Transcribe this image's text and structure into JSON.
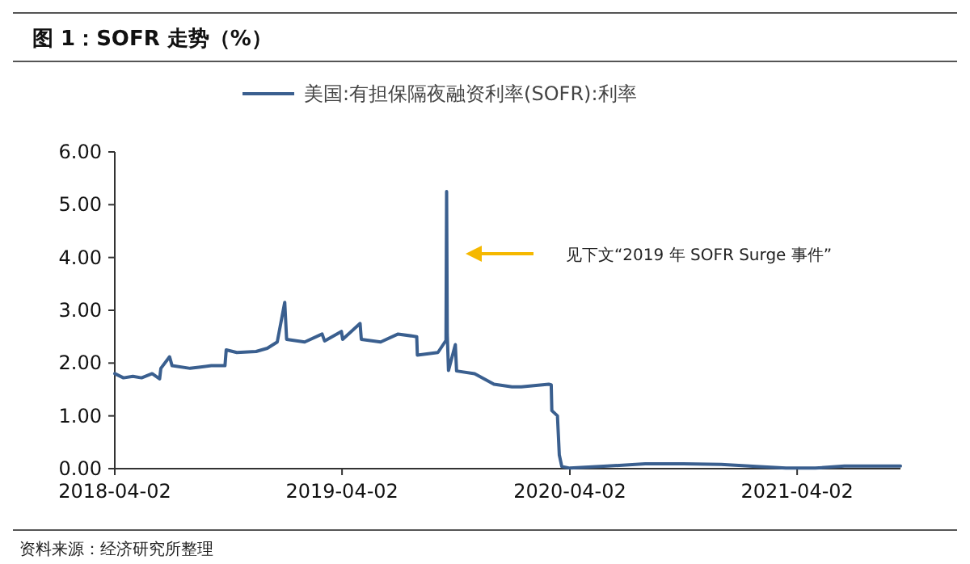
{
  "chart_data": {
    "type": "line",
    "title": "图 1：SOFR 走势（%）",
    "x": [
      "2018-04-02",
      "2018-04-16",
      "2018-05-01",
      "2018-05-15",
      "2018-06-01",
      "2018-06-13",
      "2018-06-15",
      "2018-06-29",
      "2018-07-03",
      "2018-08-01",
      "2018-08-15",
      "2018-09-04",
      "2018-09-26",
      "2018-09-28",
      "2018-10-15",
      "2018-11-15",
      "2018-12-03",
      "2018-12-19",
      "2018-12-31",
      "2019-01-03",
      "2019-02-01",
      "2019-03-01",
      "2019-03-05",
      "2019-04-01",
      "2019-04-03",
      "2019-05-01",
      "2019-05-03",
      "2019-06-03",
      "2019-07-01",
      "2019-07-31",
      "2019-08-01",
      "2019-09-03",
      "2019-09-16",
      "2019-09-17",
      "2019-09-18",
      "2019-09-20",
      "2019-10-01",
      "2019-10-03",
      "2019-11-01",
      "2019-12-02",
      "2019-12-31",
      "2020-01-15",
      "2020-02-28",
      "2020-03-03",
      "2020-03-04",
      "2020-03-13",
      "2020-03-16",
      "2020-03-20",
      "2020-04-02",
      "2020-06-01",
      "2020-08-01",
      "2020-10-01",
      "2020-12-01",
      "2021-02-01",
      "2021-03-15",
      "2021-05-01",
      "2021-06-17",
      "2021-09-15"
    ],
    "series": [
      {
        "name": "美国:有担保隔夜融资利率(SOFR):利率",
        "color": "#3a5f8f",
        "values": [
          1.8,
          1.72,
          1.75,
          1.72,
          1.8,
          1.7,
          1.9,
          2.12,
          1.95,
          1.9,
          1.92,
          1.95,
          1.95,
          2.25,
          2.2,
          2.22,
          2.28,
          2.4,
          3.15,
          2.45,
          2.4,
          2.55,
          2.42,
          2.6,
          2.45,
          2.75,
          2.45,
          2.4,
          2.55,
          2.5,
          2.15,
          2.2,
          2.43,
          5.25,
          2.55,
          1.86,
          2.35,
          1.85,
          1.8,
          1.6,
          1.55,
          1.55,
          1.6,
          1.59,
          1.1,
          1.0,
          0.26,
          0.04,
          0.01,
          0.05,
          0.09,
          0.09,
          0.08,
          0.04,
          0.01,
          0.01,
          0.05,
          0.05
        ]
      }
    ],
    "xlim": [
      "2018-04-02",
      "2021-09-15"
    ],
    "xticks": [
      "2018-04-02",
      "2019-04-02",
      "2020-04-02",
      "2021-04-02"
    ],
    "ylim": [
      0,
      6
    ],
    "yticks": [
      {
        "value": 0,
        "label": "0.00"
      },
      {
        "value": 1,
        "label": "1.00"
      },
      {
        "value": 2,
        "label": "2.00"
      },
      {
        "value": 3,
        "label": "3.00"
      },
      {
        "value": 4,
        "label": "4.00"
      },
      {
        "value": 5,
        "label": "5.00"
      },
      {
        "value": 6,
        "label": "6.00"
      }
    ],
    "legend": "top",
    "grid": false,
    "annotations": [
      "见下文“2019 年 SOFR Surge 事件”",
      "资料来源：经济研究所整理"
    ]
  }
}
